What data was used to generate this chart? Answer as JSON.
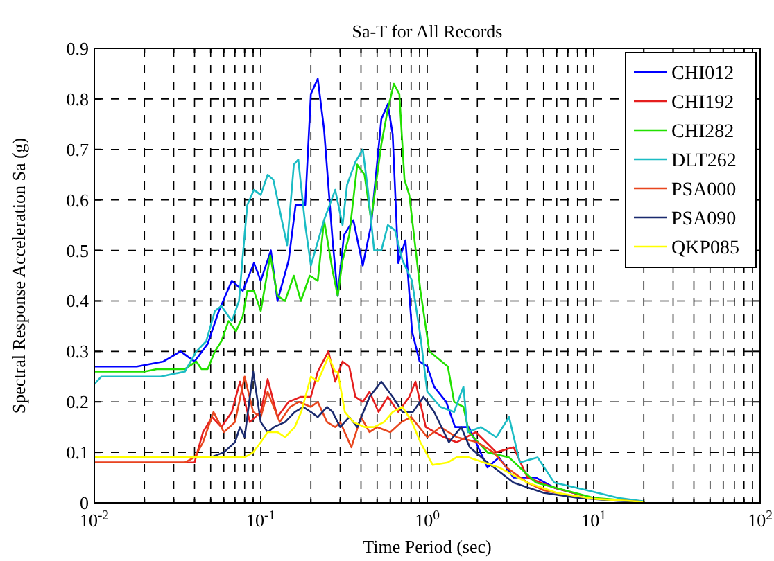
{
  "chart_data": {
    "type": "line",
    "title": "Sa-T for All Records",
    "xlabel": "Time Period (sec)",
    "ylabel": "Spectral Response Acceleration Sa (g)",
    "log": "x",
    "grid": true,
    "legend": "top right",
    "line_style": "solid",
    "marker": "none",
    "xlim": [
      0.01,
      100
    ],
    "xticks": [
      {
        "value": 0.01,
        "label": "10$^{-2}$"
      },
      {
        "value": 0.1,
        "label": "10$^{-1}$"
      },
      {
        "value": 1,
        "label": "10$^{0}$"
      },
      {
        "value": 10,
        "label": "10$^{1}$"
      },
      {
        "value": 100,
        "label": "10$^{2}$"
      }
    ],
    "ylim": [
      0,
      0.9
    ],
    "yticks": [
      0,
      0.1,
      0.2,
      0.3,
      0.4,
      0.5,
      0.6,
      0.7,
      0.8,
      0.9
    ],
    "series": [
      {
        "name": "CHI012",
        "color": "#0000ff",
        "x": [
          0.01,
          0.018,
          0.026,
          0.033,
          0.04,
          0.048,
          0.056,
          0.067,
          0.078,
          0.091,
          0.1,
          0.115,
          0.126,
          0.147,
          0.162,
          0.185,
          0.2,
          0.22,
          0.24,
          0.27,
          0.29,
          0.316,
          0.36,
          0.41,
          0.46,
          0.53,
          0.58,
          0.62,
          0.67,
          0.74,
          0.81,
          0.9,
          1,
          1.1,
          1.3,
          1.47,
          1.78,
          2.3,
          2.7,
          3.3,
          4.5,
          5.8,
          8.5
        ],
        "values": [
          0.27,
          0.27,
          0.28,
          0.3,
          0.28,
          0.315,
          0.38,
          0.44,
          0.42,
          0.475,
          0.44,
          0.5,
          0.4,
          0.48,
          0.59,
          0.59,
          0.81,
          0.84,
          0.74,
          0.52,
          0.41,
          0.53,
          0.56,
          0.47,
          0.55,
          0.76,
          0.79,
          0.73,
          0.475,
          0.52,
          0.34,
          0.28,
          0.27,
          0.23,
          0.2,
          0.15,
          0.15,
          0.07,
          0.09,
          0.05,
          0.05,
          0.03,
          0.015
        ]
      },
      {
        "name": "CHI192",
        "color": "#e51e1e",
        "x": [
          0.01,
          0.04,
          0.045,
          0.051,
          0.058,
          0.067,
          0.075,
          0.086,
          0.1,
          0.11,
          0.126,
          0.147,
          0.174,
          0.2,
          0.22,
          0.255,
          0.28,
          0.31,
          0.34,
          0.37,
          0.41,
          0.45,
          0.51,
          0.58,
          0.67,
          0.78,
          0.85,
          0.98,
          1.26,
          1.5,
          1.96,
          2.6,
          3.3,
          4,
          5.8,
          8.5
        ],
        "values": [
          0.08,
          0.08,
          0.14,
          0.17,
          0.15,
          0.18,
          0.24,
          0.16,
          0.18,
          0.245,
          0.17,
          0.2,
          0.21,
          0.21,
          0.26,
          0.3,
          0.24,
          0.28,
          0.27,
          0.21,
          0.2,
          0.22,
          0.18,
          0.21,
          0.18,
          0.21,
          0.24,
          0.15,
          0.13,
          0.12,
          0.14,
          0.1,
          0.11,
          0.05,
          0.03,
          0.015
        ]
      },
      {
        "name": "CHI282",
        "color": "#22e000",
        "x": [
          0.01,
          0.02,
          0.024,
          0.035,
          0.041,
          0.044,
          0.048,
          0.053,
          0.058,
          0.064,
          0.071,
          0.078,
          0.083,
          0.091,
          0.1,
          0.114,
          0.126,
          0.14,
          0.158,
          0.174,
          0.197,
          0.22,
          0.24,
          0.27,
          0.29,
          0.31,
          0.34,
          0.38,
          0.42,
          0.46,
          0.53,
          0.58,
          0.63,
          0.68,
          0.73,
          0.78,
          0.91,
          1.03,
          1.33,
          1.45,
          1.65,
          1.78,
          2.3,
          3.1,
          4.5,
          6.7,
          10,
          20
        ],
        "values": [
          0.26,
          0.26,
          0.265,
          0.265,
          0.28,
          0.265,
          0.265,
          0.3,
          0.32,
          0.36,
          0.34,
          0.37,
          0.42,
          0.42,
          0.38,
          0.49,
          0.41,
          0.4,
          0.45,
          0.4,
          0.45,
          0.44,
          0.56,
          0.46,
          0.41,
          0.48,
          0.53,
          0.67,
          0.65,
          0.56,
          0.71,
          0.78,
          0.83,
          0.81,
          0.64,
          0.61,
          0.42,
          0.3,
          0.27,
          0.2,
          0.19,
          0.14,
          0.1,
          0.09,
          0.04,
          0.025,
          0.01,
          0.002
        ]
      },
      {
        "name": "DLT262",
        "color": "#1bbcc4",
        "x": [
          0.01,
          0.011,
          0.025,
          0.035,
          0.041,
          0.047,
          0.053,
          0.058,
          0.067,
          0.074,
          0.078,
          0.083,
          0.091,
          0.1,
          0.11,
          0.119,
          0.144,
          0.158,
          0.168,
          0.185,
          0.2,
          0.24,
          0.28,
          0.31,
          0.33,
          0.37,
          0.41,
          0.44,
          0.48,
          0.53,
          0.58,
          0.64,
          0.71,
          0.81,
          0.91,
          1,
          1.2,
          1.45,
          1.65,
          1.75,
          2.1,
          2.6,
          3.1,
          3.6,
          4.6,
          5.8,
          9.1,
          14,
          20
        ],
        "values": [
          0.235,
          0.25,
          0.25,
          0.26,
          0.3,
          0.32,
          0.38,
          0.39,
          0.36,
          0.4,
          0.49,
          0.59,
          0.62,
          0.61,
          0.65,
          0.64,
          0.51,
          0.67,
          0.68,
          0.55,
          0.47,
          0.56,
          0.62,
          0.55,
          0.63,
          0.675,
          0.7,
          0.62,
          0.5,
          0.5,
          0.55,
          0.54,
          0.48,
          0.44,
          0.33,
          0.22,
          0.19,
          0.18,
          0.23,
          0.14,
          0.15,
          0.13,
          0.17,
          0.08,
          0.09,
          0.04,
          0.025,
          0.01,
          0.003
        ]
      },
      {
        "name": "PSA000",
        "color": "#e8461e",
        "x": [
          0.01,
          0.035,
          0.04,
          0.045,
          0.052,
          0.06,
          0.07,
          0.08,
          0.09,
          0.1,
          0.11,
          0.13,
          0.15,
          0.17,
          0.2,
          0.22,
          0.25,
          0.28,
          0.3,
          0.35,
          0.4,
          0.45,
          0.5,
          0.6,
          0.7,
          0.8,
          1,
          1.2,
          1.5,
          2,
          2.5,
          3,
          4,
          5,
          7,
          10,
          20
        ],
        "values": [
          0.08,
          0.08,
          0.09,
          0.12,
          0.18,
          0.14,
          0.16,
          0.25,
          0.18,
          0.17,
          0.22,
          0.16,
          0.19,
          0.2,
          0.19,
          0.2,
          0.16,
          0.15,
          0.16,
          0.11,
          0.17,
          0.14,
          0.15,
          0.14,
          0.16,
          0.17,
          0.13,
          0.15,
          0.13,
          0.12,
          0.1,
          0.07,
          0.04,
          0.025,
          0.015,
          0.008,
          0.002
        ]
      },
      {
        "name": "PSA090",
        "color": "#1a2a6e",
        "x": [
          0.01,
          0.05,
          0.06,
          0.07,
          0.075,
          0.08,
          0.09,
          0.1,
          0.11,
          0.12,
          0.14,
          0.16,
          0.18,
          0.2,
          0.22,
          0.25,
          0.27,
          0.3,
          0.34,
          0.38,
          0.45,
          0.53,
          0.62,
          0.71,
          0.82,
          0.95,
          1.1,
          1.35,
          1.6,
          1.8,
          2.3,
          3.3,
          5,
          8,
          14,
          20
        ],
        "values": [
          0.09,
          0.09,
          0.1,
          0.12,
          0.15,
          0.13,
          0.26,
          0.16,
          0.14,
          0.15,
          0.16,
          0.18,
          0.19,
          0.18,
          0.17,
          0.19,
          0.18,
          0.15,
          0.17,
          0.15,
          0.21,
          0.24,
          0.21,
          0.18,
          0.18,
          0.21,
          0.18,
          0.12,
          0.15,
          0.11,
          0.08,
          0.04,
          0.02,
          0.01,
          0.004,
          0.002
        ]
      },
      {
        "name": "QKP085",
        "color": "#ffff00",
        "x": [
          0.01,
          0.07,
          0.08,
          0.09,
          0.1,
          0.11,
          0.126,
          0.14,
          0.16,
          0.175,
          0.2,
          0.22,
          0.255,
          0.28,
          0.29,
          0.32,
          0.36,
          0.42,
          0.48,
          0.55,
          0.62,
          0.71,
          0.81,
          0.91,
          1.08,
          1.33,
          1.5,
          1.78,
          2.7,
          4,
          6,
          10,
          20
        ],
        "values": [
          0.09,
          0.09,
          0.09,
          0.1,
          0.12,
          0.14,
          0.14,
          0.13,
          0.15,
          0.18,
          0.25,
          0.24,
          0.29,
          0.26,
          0.26,
          0.18,
          0.16,
          0.15,
          0.15,
          0.16,
          0.18,
          0.19,
          0.16,
          0.12,
          0.075,
          0.08,
          0.09,
          0.09,
          0.07,
          0.04,
          0.02,
          0.008,
          0.002
        ]
      }
    ]
  }
}
